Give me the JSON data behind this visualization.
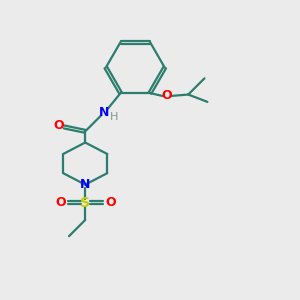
{
  "bg_color": "#ebebeb",
  "bond_color": "#2d7d6e",
  "N_color": "#0000ff",
  "O_color": "#ff0000",
  "S_color": "#cccc00",
  "H_color": "#7a9a9a",
  "line_width": 1.6,
  "fig_size": [
    3.0,
    3.0
  ],
  "dpi": 100,
  "xlim": [
    0,
    10
  ],
  "ylim": [
    0,
    10
  ]
}
